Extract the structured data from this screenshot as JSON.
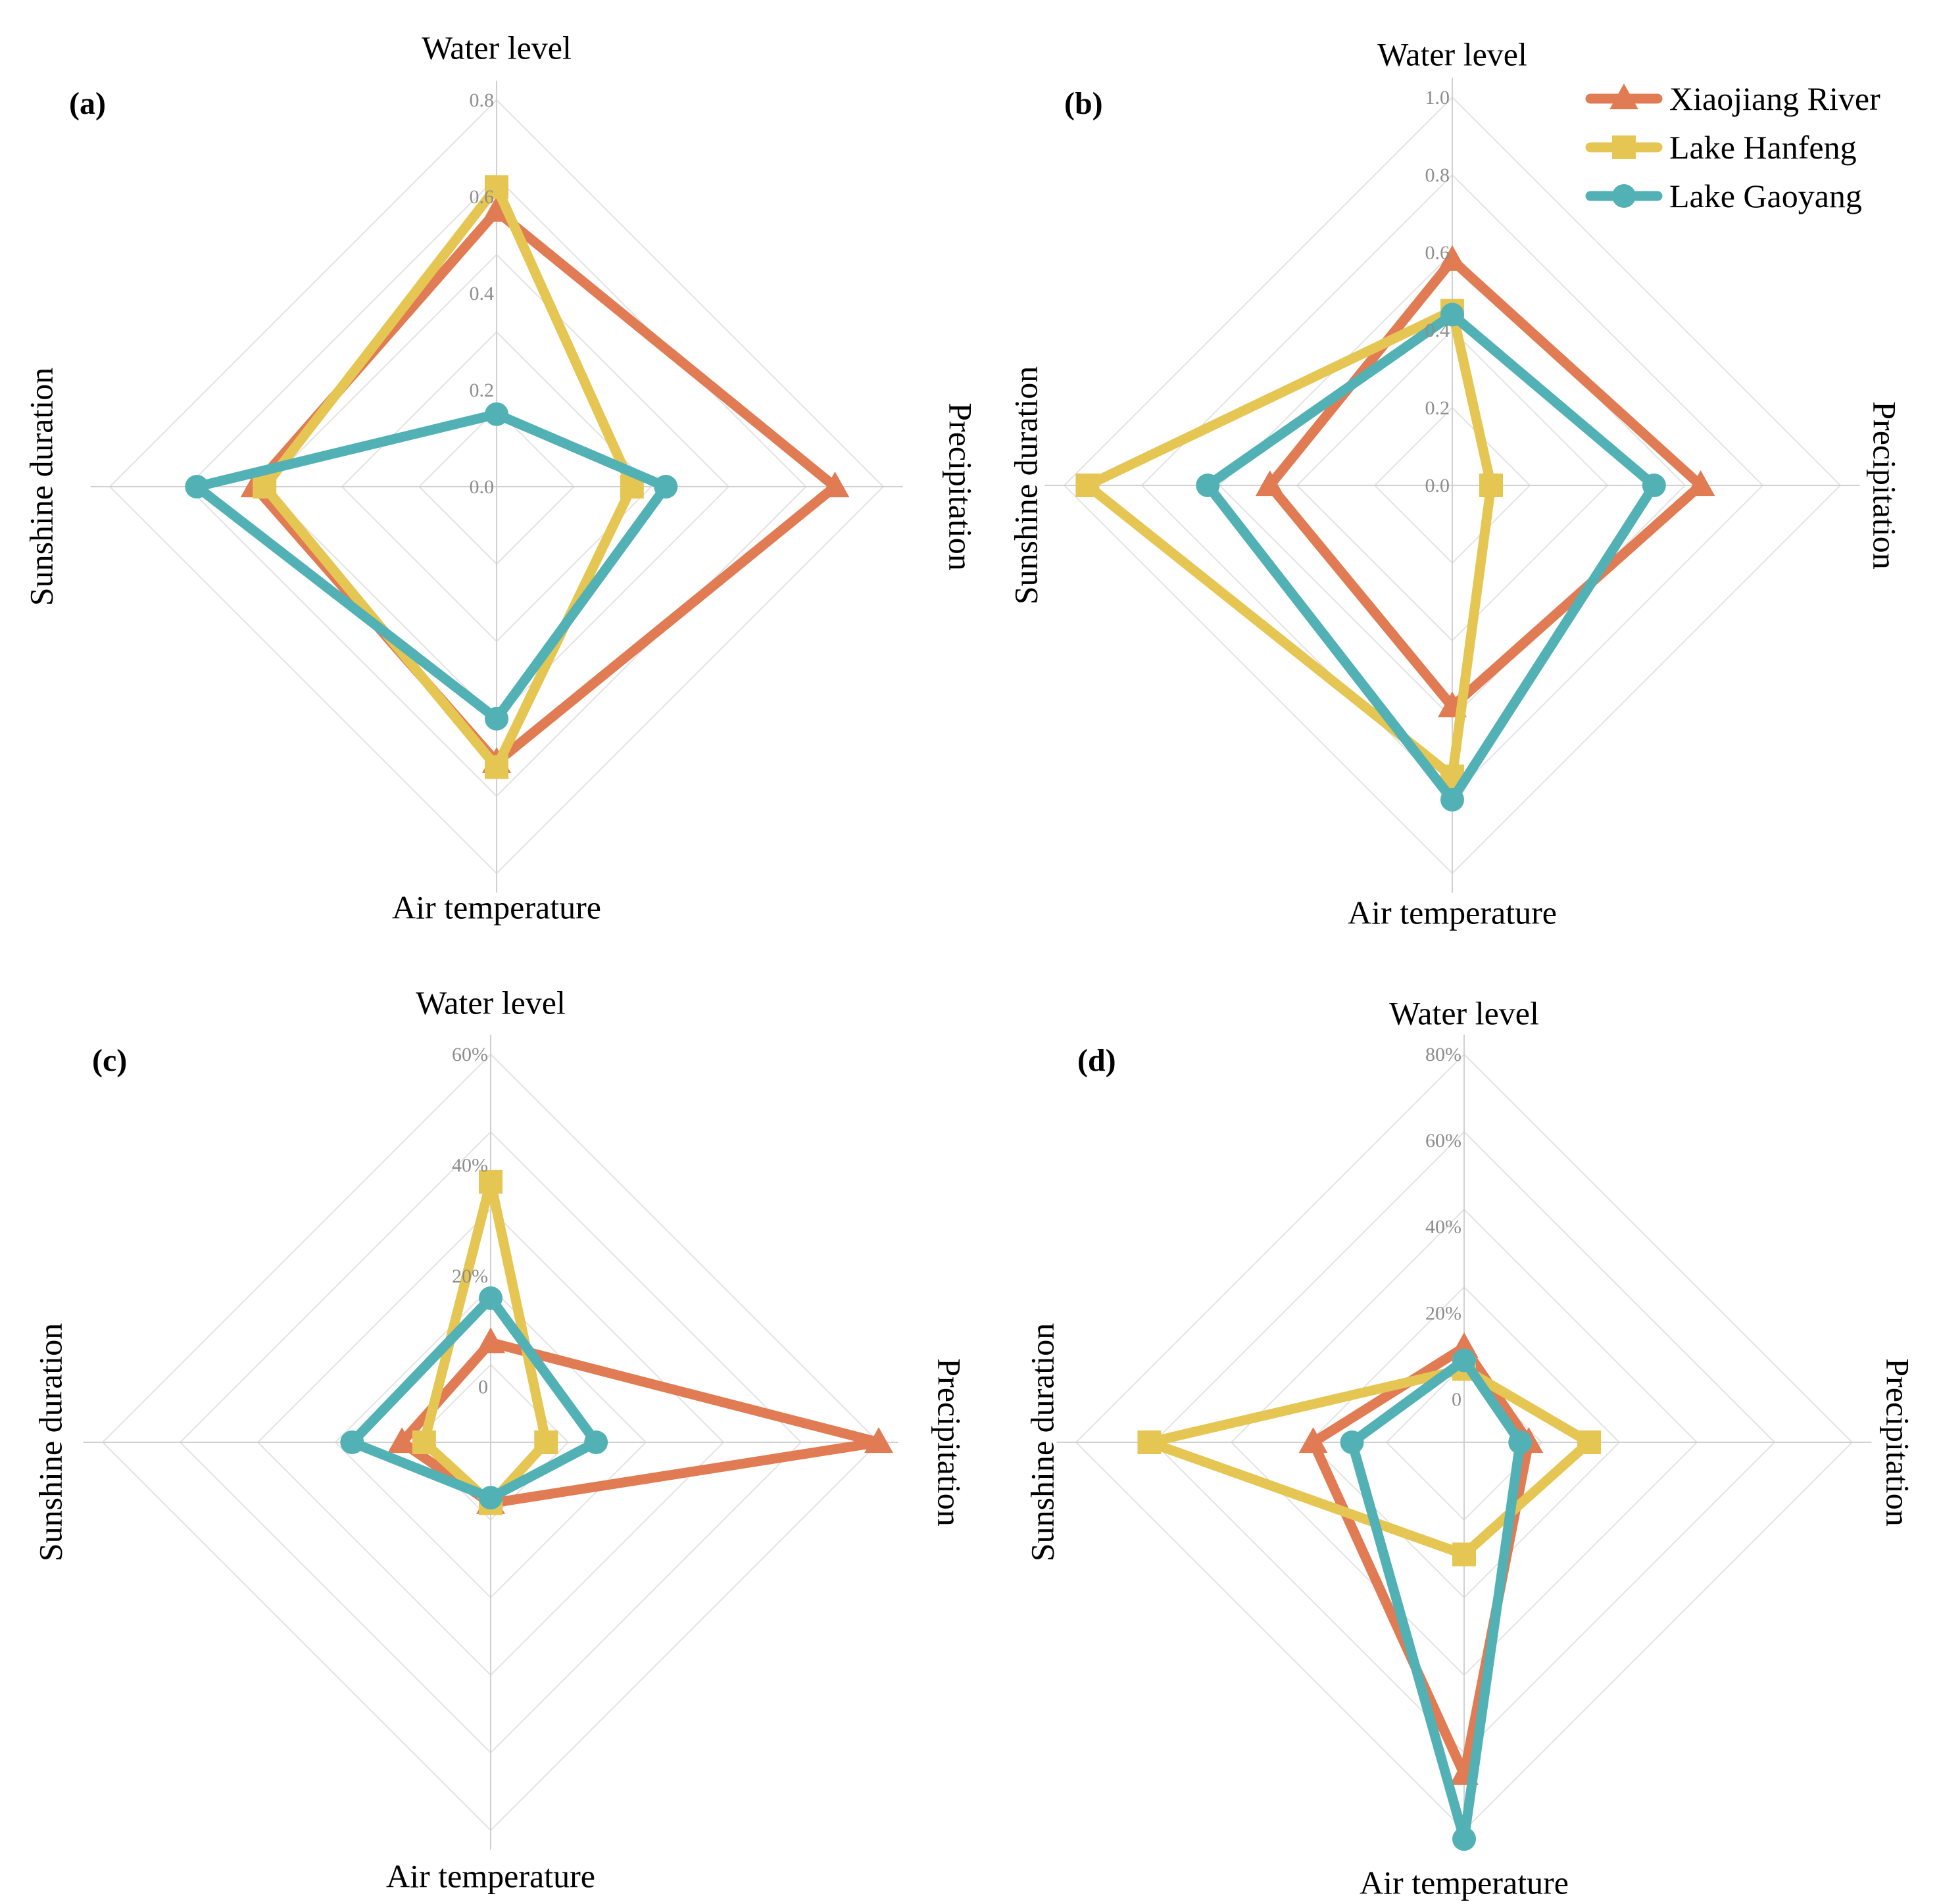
{
  "colors": {
    "Xiaojiang River": "#e07b53",
    "Lake Hanfeng": "#e6c653",
    "Lake Gaoyang": "#52b1b5",
    "grid": "#e3e3e3",
    "axis": "#d0d0d0"
  },
  "legend": [
    {
      "name": "Xiaojiang River",
      "marker": "triangle"
    },
    {
      "name": "Lake Hanfeng",
      "marker": "square"
    },
    {
      "name": "Lake Gaoyang",
      "marker": "circle"
    }
  ],
  "chart_data": [
    {
      "type": "radar",
      "panel": "(a)",
      "axes": [
        "Water level",
        "Precipitation",
        "Air temperature",
        "Sunshine duration"
      ],
      "rmax": 0.8,
      "ticks": [
        "0.8",
        "0.6",
        "0.4",
        "0.2",
        "0.0"
      ],
      "tick_values": [
        0.8,
        0.6,
        0.4,
        0.2,
        0.0
      ],
      "series": [
        {
          "name": "Xiaojiang River",
          "values": [
            0.57,
            0.7,
            0.57,
            0.5
          ]
        },
        {
          "name": "Lake Hanfeng",
          "values": [
            0.62,
            0.28,
            0.58,
            0.48
          ]
        },
        {
          "name": "Lake Gaoyang",
          "values": [
            0.15,
            0.35,
            0.48,
            0.62
          ]
        }
      ]
    },
    {
      "type": "radar",
      "panel": "(b)",
      "axes": [
        "Water level",
        "Precipitation",
        "Air temperature",
        "Sunshine duration"
      ],
      "rmax": 1.0,
      "ticks": [
        "1.0",
        "0.8",
        "0.6",
        "0.4",
        "0.2",
        "0.0"
      ],
      "tick_values": [
        1.0,
        0.8,
        0.6,
        0.4,
        0.2,
        0.0
      ],
      "series": [
        {
          "name": "Xiaojiang River",
          "values": [
            0.58,
            0.64,
            0.57,
            0.47
          ]
        },
        {
          "name": "Lake Hanfeng",
          "values": [
            0.45,
            0.1,
            0.75,
            0.94
          ]
        },
        {
          "name": "Lake Gaoyang",
          "values": [
            0.44,
            0.52,
            0.81,
            0.63
          ]
        }
      ]
    },
    {
      "type": "radar",
      "panel": "(c)",
      "axes": [
        "Water level",
        "Precipitation",
        "Air temperature",
        "Sunshine duration"
      ],
      "rmax": 60,
      "ticks": [
        "60%",
        "40%",
        "20%",
        "0"
      ],
      "tick_values": [
        60,
        40,
        20,
        0
      ],
      "tick_offset": 10,
      "series": [
        {
          "name": "Xiaojiang River",
          "values": [
            8,
            60,
            1,
            6
          ]
        },
        {
          "name": "Lake Hanfeng",
          "values": [
            37,
            0,
            1,
            2
          ]
        },
        {
          "name": "Lake Gaoyang",
          "values": [
            16,
            9,
            0,
            15
          ]
        }
      ]
    },
    {
      "type": "radar",
      "panel": "(d)",
      "axes": [
        "Water level",
        "Precipitation",
        "Air temperature",
        "Sunshine duration"
      ],
      "rmax": 80,
      "ticks": [
        "80%",
        "60%",
        "40%",
        "20%",
        "0"
      ],
      "tick_values": [
        80,
        60,
        40,
        20,
        0
      ],
      "tick_offset": 10,
      "series": [
        {
          "name": "Xiaojiang River",
          "values": [
            12,
            5,
            67,
            25
          ]
        },
        {
          "name": "Lake Hanfeng",
          "values": [
            7,
            19,
            16,
            63
          ]
        },
        {
          "name": "Lake Gaoyang",
          "values": [
            9,
            3,
            82,
            16
          ]
        }
      ]
    }
  ]
}
